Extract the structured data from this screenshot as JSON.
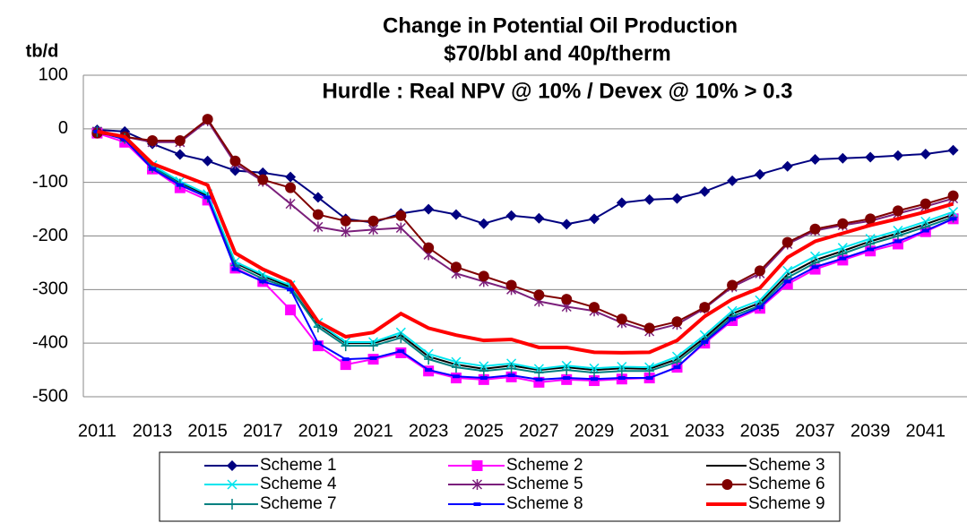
{
  "chart_data": {
    "type": "line",
    "title": "Change in Potential Oil Production",
    "subtitle": "$70/bbl and 40p/therm",
    "annotation": "Hurdle : Real NPV @ 10% / Devex @ 10% > 0.3",
    "y_label": "tb/d",
    "categories": [
      "2011",
      null,
      "2013",
      null,
      "2015",
      null,
      "2017",
      null,
      "2019",
      null,
      "2021",
      null,
      "2023",
      null,
      "2025",
      null,
      "2027",
      null,
      "2029",
      null,
      "2031",
      null,
      "2033",
      null,
      "2035",
      null,
      "2037",
      null,
      "2039",
      null,
      "2041",
      null
    ],
    "ylim": [
      -500,
      100
    ],
    "yticks": [
      100,
      0,
      -100,
      -200,
      -300,
      -400,
      -500
    ],
    "grid": true,
    "legend": "bottom",
    "series": [
      {
        "name": "Scheme 1",
        "color": "#000080",
        "marker": "diamond",
        "values": [
          -2,
          -5,
          -28,
          -48,
          -60,
          -78,
          -82,
          -90,
          -128,
          -168,
          -175,
          -158,
          -150,
          -160,
          -177,
          -162,
          -167,
          -178,
          -168,
          -138,
          -132,
          -130,
          -117,
          -97,
          -85,
          -70,
          -57,
          -55,
          -53,
          -50,
          -47,
          -40
        ]
      },
      {
        "name": "Scheme 2",
        "color": "#ff00ff",
        "marker": "square",
        "values": [
          -8,
          -25,
          -75,
          -110,
          -133,
          -260,
          -285,
          -338,
          -405,
          -440,
          -430,
          -418,
          -452,
          -465,
          -468,
          -463,
          -473,
          -468,
          -470,
          -467,
          -465,
          -445,
          -400,
          -358,
          -335,
          -290,
          -262,
          -245,
          -228,
          -215,
          -192,
          -168
        ]
      },
      {
        "name": "Scheme 3",
        "color": "#000000",
        "marker": "none",
        "values": [
          -5,
          -18,
          -70,
          -100,
          -125,
          -250,
          -275,
          -295,
          -365,
          -400,
          -400,
          -385,
          -425,
          -440,
          -448,
          -442,
          -450,
          -445,
          -450,
          -447,
          -448,
          -430,
          -390,
          -345,
          -325,
          -272,
          -245,
          -228,
          -210,
          -195,
          -178,
          -160
        ]
      },
      {
        "name": "Scheme 4",
        "color": "#00e5ee",
        "marker": "x",
        "values": [
          -5,
          -17,
          -68,
          -98,
          -122,
          -248,
          -272,
          -292,
          -362,
          -398,
          -398,
          -380,
          -420,
          -435,
          -443,
          -438,
          -448,
          -442,
          -447,
          -444,
          -445,
          -425,
          -385,
          -340,
          -320,
          -265,
          -238,
          -222,
          -205,
          -190,
          -173,
          -155
        ]
      },
      {
        "name": "Scheme 5",
        "color": "#7b1f7b",
        "marker": "star",
        "values": [
          -5,
          -15,
          -25,
          -25,
          15,
          -65,
          -98,
          -140,
          -183,
          -192,
          -188,
          -185,
          -235,
          -270,
          -285,
          -300,
          -322,
          -332,
          -340,
          -362,
          -378,
          -365,
          -335,
          -295,
          -270,
          -215,
          -190,
          -180,
          -172,
          -158,
          -145,
          -130
        ]
      },
      {
        "name": "Scheme 6",
        "color": "#800000",
        "marker": "circle",
        "values": [
          -8,
          -15,
          -22,
          -22,
          18,
          -60,
          -95,
          -110,
          -160,
          -172,
          -172,
          -162,
          -222,
          -258,
          -275,
          -292,
          -310,
          -318,
          -333,
          -355,
          -372,
          -360,
          -333,
          -292,
          -265,
          -212,
          -187,
          -177,
          -168,
          -153,
          -140,
          -125
        ]
      },
      {
        "name": "Scheme 7",
        "color": "#008080",
        "marker": "plus",
        "values": [
          -5,
          -18,
          -72,
          -103,
          -128,
          -255,
          -280,
          -298,
          -370,
          -405,
          -405,
          -390,
          -430,
          -445,
          -452,
          -447,
          -455,
          -450,
          -455,
          -452,
          -452,
          -435,
          -395,
          -350,
          -330,
          -278,
          -250,
          -233,
          -215,
          -200,
          -183,
          -165
        ]
      },
      {
        "name": "Scheme 8",
        "color": "#0000ff",
        "marker": "dash",
        "values": [
          -5,
          -20,
          -75,
          -105,
          -128,
          -262,
          -285,
          -300,
          -400,
          -430,
          -428,
          -415,
          -450,
          -462,
          -465,
          -460,
          -468,
          -465,
          -467,
          -465,
          -465,
          -445,
          -398,
          -355,
          -333,
          -285,
          -258,
          -242,
          -225,
          -210,
          -190,
          -168
        ]
      },
      {
        "name": "Scheme 9",
        "color": "#ff0000",
        "marker": "none",
        "width": 4,
        "values": [
          -5,
          -15,
          -65,
          -85,
          -105,
          -232,
          -262,
          -285,
          -360,
          -388,
          -380,
          -345,
          -372,
          -385,
          -395,
          -393,
          -408,
          -408,
          -417,
          -418,
          -417,
          -395,
          -350,
          -318,
          -297,
          -240,
          -210,
          -195,
          -180,
          -168,
          -155,
          -140
        ]
      }
    ]
  }
}
